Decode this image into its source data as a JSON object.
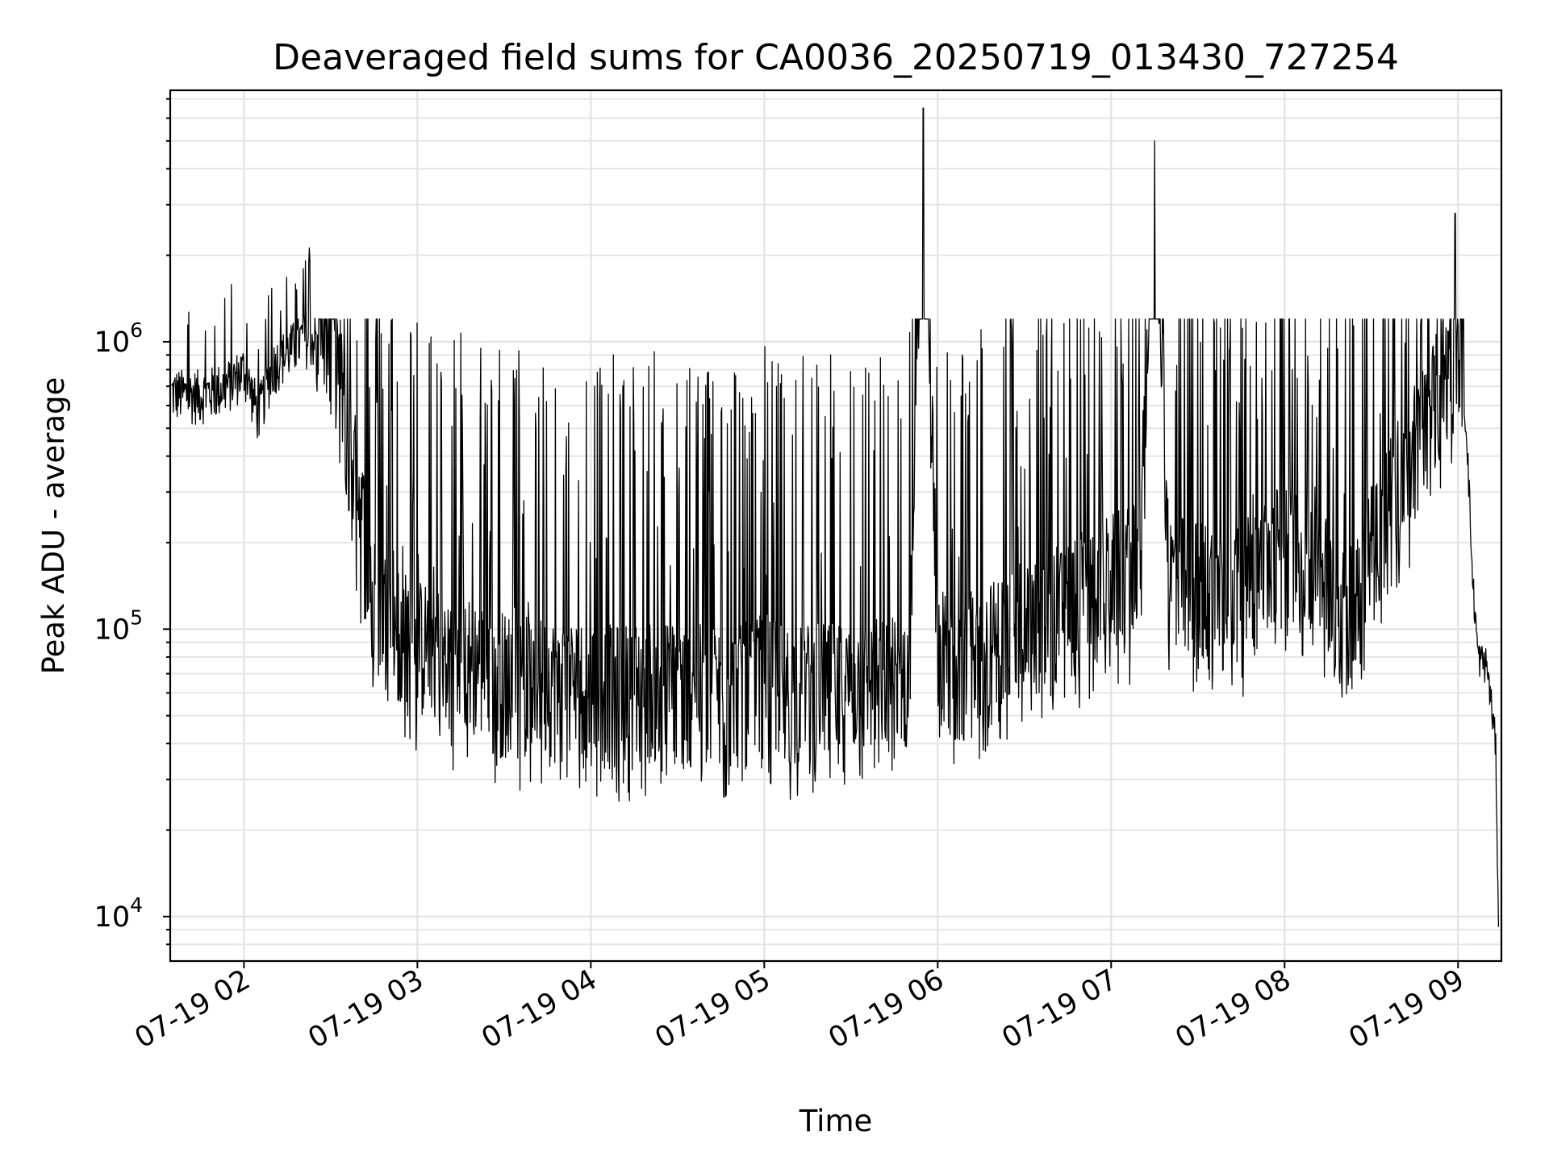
{
  "chart_data": {
    "type": "line",
    "title": "Deaveraged field sums for CA0036_20250719_013430_727254",
    "xlabel": "Time",
    "ylabel": "Peak ADU - average",
    "yscale": "log",
    "grid": true,
    "legend": "none",
    "line_color": "#000000",
    "xlim": [
      "2025-07-19 01:34:30",
      "2025-07-19 09:15:00"
    ],
    "ylim": [
      7000,
      7500000
    ],
    "x_ticks": [
      {
        "value": "2025-07-19 02:00",
        "label": "07-19 02"
      },
      {
        "value": "2025-07-19 03:00",
        "label": "07-19 03"
      },
      {
        "value": "2025-07-19 04:00",
        "label": "07-19 04"
      },
      {
        "value": "2025-07-19 05:00",
        "label": "07-19 05"
      },
      {
        "value": "2025-07-19 06:00",
        "label": "07-19 06"
      },
      {
        "value": "2025-07-19 07:00",
        "label": "07-19 07"
      },
      {
        "value": "2025-07-19 08:00",
        "label": "07-19 08"
      },
      {
        "value": "2025-07-19 09:00",
        "label": "07-19 09"
      }
    ],
    "y_ticks": [
      {
        "value": 10000,
        "base": "10",
        "exp": "4"
      },
      {
        "value": 100000,
        "base": "10",
        "exp": "5"
      },
      {
        "value": 1000000,
        "base": "10",
        "exp": "6"
      }
    ],
    "series": [
      {
        "x": [
          "01:35",
          "01:40",
          "01:45",
          "01:50",
          "01:55",
          "02:00",
          "02:05",
          "02:10",
          "02:15",
          "02:20",
          "02:25",
          "02:30",
          "02:35",
          "02:40",
          "02:45",
          "02:50",
          "02:55",
          "03:00",
          "03:10",
          "03:20",
          "03:30",
          "03:40",
          "03:50",
          "04:00",
          "04:10",
          "04:20",
          "04:30",
          "04:40",
          "04:50",
          "05:00",
          "05:10",
          "05:20",
          "05:30",
          "05:40",
          "05:50",
          "05:55",
          "06:00",
          "06:10",
          "06:20",
          "06:30",
          "06:40",
          "06:50",
          "07:00",
          "07:10",
          "07:15",
          "07:20",
          "07:30",
          "07:40",
          "07:50",
          "08:00",
          "08:10",
          "08:20",
          "08:30",
          "08:40",
          "08:50",
          "09:00",
          "09:03",
          "09:05",
          "09:07",
          "09:10",
          "09:13",
          "09:14"
        ],
        "y": [
          650000,
          640000,
          640000,
          660000,
          700000,
          780000,
          550000,
          800000,
          900000,
          1000000,
          1000000,
          950000,
          400000,
          200000,
          90000,
          80000,
          70000,
          65000,
          60000,
          55000,
          50000,
          48000,
          47000,
          46000,
          45000,
          47000,
          46000,
          45000,
          44000,
          50000,
          45000,
          46000,
          45000,
          48000,
          50000,
          6500000,
          60000,
          58000,
          65000,
          75000,
          85000,
          95000,
          110000,
          120000,
          5000000,
          110000,
          105000,
          100000,
          110000,
          150000,
          140000,
          80000,
          150000,
          250000,
          400000,
          750000,
          500000,
          150000,
          80000,
          75000,
          40000,
          10000
        ],
        "peaks": [
          {
            "x": "05:55",
            "y": 6500000
          },
          {
            "x": "07:15",
            "y": 5000000
          },
          {
            "x": "08:59",
            "y": 2800000
          }
        ],
        "noise_band": {
          "low": 25000,
          "high": 1000000
        }
      }
    ]
  }
}
